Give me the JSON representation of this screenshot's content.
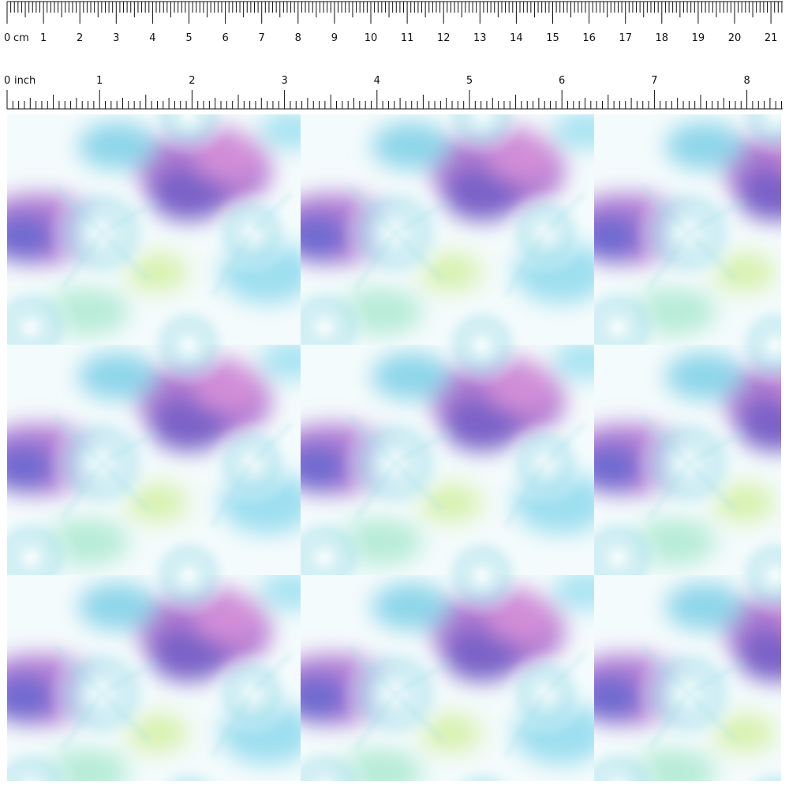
{
  "cm_ruler": {
    "unit": "cm",
    "labels": [
      0,
      1,
      2,
      3,
      4,
      5,
      6,
      7,
      8,
      9,
      10,
      11,
      12,
      13,
      14,
      15,
      16,
      17,
      18,
      19,
      20,
      21
    ]
  },
  "inch_ruler": {
    "unit": "inch",
    "labels": [
      0,
      1,
      2,
      3,
      4,
      5,
      6,
      7,
      8
    ]
  }
}
